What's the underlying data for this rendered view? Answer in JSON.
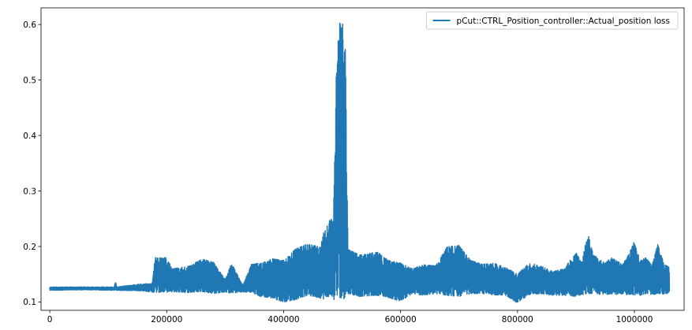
{
  "chart_data": {
    "type": "line",
    "title": "",
    "xlabel": "",
    "ylabel": "",
    "xlim": [
      -15000,
      1085000
    ],
    "ylim": [
      0.085,
      0.63
    ],
    "xticks": [
      0,
      200000,
      400000,
      600000,
      800000,
      1000000
    ],
    "xtick_labels": [
      "0",
      "200000",
      "400000",
      "600000",
      "800000",
      "1000000"
    ],
    "yticks": [
      0.1,
      0.2,
      0.3,
      0.4,
      0.5,
      0.6
    ],
    "ytick_labels": [
      "0.1",
      "0.2",
      "0.3",
      "0.4",
      "0.5",
      "0.6"
    ],
    "grid": false,
    "legend_position": "top-right",
    "series": [
      {
        "name": "pCut::CTRL_Position_controller::Actual_position loss",
        "color": "#1f77b4",
        "envelope": {
          "x": [
            0,
            60000,
            110000,
            112000,
            115000,
            160000,
            175000,
            180000,
            200000,
            210000,
            240000,
            260000,
            280000,
            300000,
            310000,
            330000,
            345000,
            360000,
            380000,
            400000,
            420000,
            440000,
            460000,
            470000,
            480000,
            485000,
            490000,
            495000,
            500000,
            505000,
            510000,
            530000,
            560000,
            580000,
            600000,
            620000,
            640000,
            660000,
            680000,
            700000,
            720000,
            740000,
            760000,
            780000,
            800000,
            820000,
            840000,
            860000,
            880000,
            900000,
            910000,
            920000,
            930000,
            950000,
            960000,
            980000,
            990000,
            1000000,
            1010000,
            1020000,
            1030000,
            1040000,
            1050000,
            1060000
          ],
          "low": [
            0.121,
            0.122,
            0.121,
            0.122,
            0.121,
            0.12,
            0.118,
            0.117,
            0.118,
            0.118,
            0.117,
            0.119,
            0.115,
            0.118,
            0.116,
            0.118,
            0.117,
            0.11,
            0.107,
            0.1,
            0.104,
            0.112,
            0.108,
            0.105,
            0.112,
            0.105,
            0.102,
            0.11,
            0.103,
            0.108,
            0.115,
            0.11,
            0.112,
            0.108,
            0.101,
            0.115,
            0.112,
            0.115,
            0.112,
            0.11,
            0.115,
            0.115,
            0.113,
            0.112,
            0.098,
            0.113,
            0.115,
            0.112,
            0.112,
            0.11,
            0.113,
            0.115,
            0.115,
            0.113,
            0.115,
            0.112,
            0.114,
            0.113,
            0.112,
            0.115,
            0.113,
            0.115,
            0.114,
            0.116
          ],
          "high": [
            0.127,
            0.127,
            0.127,
            0.137,
            0.127,
            0.133,
            0.133,
            0.18,
            0.18,
            0.16,
            0.165,
            0.177,
            0.172,
            0.14,
            0.172,
            0.13,
            0.168,
            0.17,
            0.178,
            0.175,
            0.195,
            0.205,
            0.2,
            0.23,
            0.25,
            0.245,
            0.54,
            0.6,
            0.612,
            0.6,
            0.195,
            0.185,
            0.19,
            0.175,
            0.17,
            0.16,
            0.167,
            0.165,
            0.2,
            0.202,
            0.175,
            0.168,
            0.17,
            0.162,
            0.15,
            0.17,
            0.165,
            0.155,
            0.16,
            0.19,
            0.17,
            0.225,
            0.185,
            0.17,
            0.18,
            0.168,
            0.185,
            0.212,
            0.175,
            0.18,
            0.165,
            0.205,
            0.17,
            0.162
          ]
        }
      }
    ]
  }
}
